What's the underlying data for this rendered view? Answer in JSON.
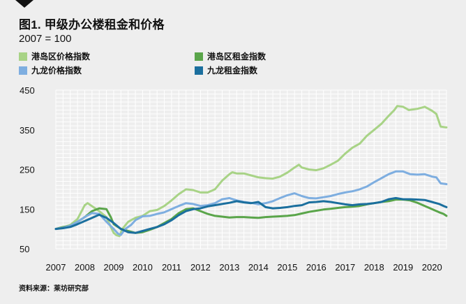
{
  "title": "图1. 甲级办公楼租金和价格",
  "subtitle": "2007 = 100",
  "source": "资料来源：莱坊研究部",
  "chart_data": {
    "type": "line",
    "title": "图1. 甲级办公楼租金和价格",
    "subtitle": "2007 = 100",
    "xlabel": "",
    "ylabel": "",
    "xlim": [
      2007,
      2020.5
    ],
    "ylim": [
      50,
      450
    ],
    "y_ticks": [
      50,
      150,
      250,
      350,
      450
    ],
    "x_ticks": [
      2007,
      2008,
      2009,
      2010,
      2011,
      2012,
      2013,
      2014,
      2015,
      2016,
      2017,
      2018,
      2019,
      2020
    ],
    "grid": true,
    "legend_position": "top-left",
    "series": [
      {
        "name": "港岛区价格指数",
        "color": "#a8d386",
        "points": [
          [
            2007,
            100
          ],
          [
            2007.25,
            104
          ],
          [
            2007.5,
            110
          ],
          [
            2007.75,
            125
          ],
          [
            2008,
            160
          ],
          [
            2008.1,
            165
          ],
          [
            2008.3,
            155
          ],
          [
            2008.5,
            145
          ],
          [
            2008.75,
            130
          ],
          [
            2008.9,
            105
          ],
          [
            2009,
            90
          ],
          [
            2009.1,
            84
          ],
          [
            2009.2,
            82
          ],
          [
            2009.3,
            100
          ],
          [
            2009.5,
            118
          ],
          [
            2009.75,
            128
          ],
          [
            2010,
            133
          ],
          [
            2010.25,
            145
          ],
          [
            2010.5,
            148
          ],
          [
            2010.75,
            158
          ],
          [
            2011,
            172
          ],
          [
            2011.25,
            188
          ],
          [
            2011.5,
            200
          ],
          [
            2011.75,
            198
          ],
          [
            2012,
            192
          ],
          [
            2012.25,
            192
          ],
          [
            2012.5,
            200
          ],
          [
            2012.75,
            222
          ],
          [
            2013,
            238
          ],
          [
            2013.1,
            243
          ],
          [
            2013.25,
            240
          ],
          [
            2013.5,
            240
          ],
          [
            2013.75,
            235
          ],
          [
            2014,
            230
          ],
          [
            2014.25,
            228
          ],
          [
            2014.5,
            227
          ],
          [
            2014.75,
            232
          ],
          [
            2015,
            242
          ],
          [
            2015.25,
            255
          ],
          [
            2015.4,
            262
          ],
          [
            2015.5,
            255
          ],
          [
            2015.75,
            250
          ],
          [
            2016,
            248
          ],
          [
            2016.25,
            253
          ],
          [
            2016.5,
            262
          ],
          [
            2016.75,
            272
          ],
          [
            2017,
            290
          ],
          [
            2017.25,
            305
          ],
          [
            2017.5,
            315
          ],
          [
            2017.75,
            335
          ],
          [
            2018,
            350
          ],
          [
            2018.25,
            365
          ],
          [
            2018.5,
            385
          ],
          [
            2018.7,
            400
          ],
          [
            2018.8,
            410
          ],
          [
            2019,
            408
          ],
          [
            2019.2,
            400
          ],
          [
            2019.5,
            403
          ],
          [
            2019.75,
            408
          ],
          [
            2020,
            398
          ],
          [
            2020.15,
            390
          ],
          [
            2020.3,
            358
          ],
          [
            2020.5,
            356
          ]
        ]
      },
      {
        "name": "港岛区租金指数",
        "color": "#5aa54a",
        "points": [
          [
            2007,
            100
          ],
          [
            2007.25,
            105
          ],
          [
            2007.5,
            108
          ],
          [
            2007.75,
            118
          ],
          [
            2008,
            130
          ],
          [
            2008.25,
            145
          ],
          [
            2008.5,
            152
          ],
          [
            2008.75,
            150
          ],
          [
            2008.9,
            130
          ],
          [
            2009,
            112
          ],
          [
            2009.25,
            100
          ],
          [
            2009.5,
            95
          ],
          [
            2009.75,
            90
          ],
          [
            2010,
            92
          ],
          [
            2010.25,
            98
          ],
          [
            2010.5,
            105
          ],
          [
            2010.75,
            115
          ],
          [
            2011,
            125
          ],
          [
            2011.25,
            140
          ],
          [
            2011.5,
            150
          ],
          [
            2011.75,
            152
          ],
          [
            2012,
            145
          ],
          [
            2012.25,
            138
          ],
          [
            2012.5,
            133
          ],
          [
            2012.75,
            131
          ],
          [
            2013,
            129
          ],
          [
            2013.25,
            130
          ],
          [
            2013.5,
            130
          ],
          [
            2013.75,
            129
          ],
          [
            2014,
            128
          ],
          [
            2014.25,
            130
          ],
          [
            2014.5,
            131
          ],
          [
            2014.75,
            132
          ],
          [
            2015,
            133
          ],
          [
            2015.25,
            135
          ],
          [
            2015.5,
            139
          ],
          [
            2015.75,
            143
          ],
          [
            2016,
            146
          ],
          [
            2016.25,
            149
          ],
          [
            2016.5,
            151
          ],
          [
            2016.75,
            153
          ],
          [
            2017,
            155
          ],
          [
            2017.25,
            156
          ],
          [
            2017.5,
            158
          ],
          [
            2017.75,
            162
          ],
          [
            2018,
            165
          ],
          [
            2018.25,
            168
          ],
          [
            2018.5,
            170
          ],
          [
            2018.75,
            174
          ],
          [
            2019,
            174
          ],
          [
            2019.25,
            172
          ],
          [
            2019.5,
            166
          ],
          [
            2019.75,
            158
          ],
          [
            2020,
            150
          ],
          [
            2020.25,
            142
          ],
          [
            2020.4,
            138
          ],
          [
            2020.5,
            133
          ]
        ]
      },
      {
        "name": "九龙价格指数",
        "color": "#7eaee0",
        "points": [
          [
            2007,
            100
          ],
          [
            2007.25,
            103
          ],
          [
            2007.5,
            108
          ],
          [
            2007.75,
            118
          ],
          [
            2008,
            130
          ],
          [
            2008.25,
            140
          ],
          [
            2008.5,
            138
          ],
          [
            2008.75,
            118
          ],
          [
            2009,
            100
          ],
          [
            2009.15,
            88
          ],
          [
            2009.25,
            85
          ],
          [
            2009.4,
            100
          ],
          [
            2009.6,
            110
          ],
          [
            2009.75,
            122
          ],
          [
            2010,
            132
          ],
          [
            2010.25,
            133
          ],
          [
            2010.5,
            138
          ],
          [
            2010.75,
            142
          ],
          [
            2011,
            150
          ],
          [
            2011.25,
            158
          ],
          [
            2011.5,
            165
          ],
          [
            2011.75,
            163
          ],
          [
            2012,
            158
          ],
          [
            2012.25,
            160
          ],
          [
            2012.5,
            165
          ],
          [
            2012.75,
            175
          ],
          [
            2013,
            178
          ],
          [
            2013.25,
            172
          ],
          [
            2013.5,
            168
          ],
          [
            2013.75,
            166
          ],
          [
            2014,
            162
          ],
          [
            2014.25,
            165
          ],
          [
            2014.5,
            170
          ],
          [
            2014.75,
            178
          ],
          [
            2015,
            185
          ],
          [
            2015.25,
            190
          ],
          [
            2015.5,
            183
          ],
          [
            2015.75,
            178
          ],
          [
            2016,
            177
          ],
          [
            2016.25,
            180
          ],
          [
            2016.5,
            183
          ],
          [
            2016.75,
            188
          ],
          [
            2017,
            192
          ],
          [
            2017.25,
            195
          ],
          [
            2017.5,
            200
          ],
          [
            2017.75,
            207
          ],
          [
            2018,
            218
          ],
          [
            2018.25,
            228
          ],
          [
            2018.5,
            238
          ],
          [
            2018.75,
            245
          ],
          [
            2019,
            245
          ],
          [
            2019.25,
            238
          ],
          [
            2019.5,
            237
          ],
          [
            2019.75,
            238
          ],
          [
            2020,
            232
          ],
          [
            2020.15,
            230
          ],
          [
            2020.3,
            215
          ],
          [
            2020.5,
            213
          ]
        ]
      },
      {
        "name": "九龙租金指数",
        "color": "#1b6f9e",
        "points": [
          [
            2007,
            100
          ],
          [
            2007.25,
            102
          ],
          [
            2007.5,
            105
          ],
          [
            2007.75,
            112
          ],
          [
            2008,
            120
          ],
          [
            2008.25,
            128
          ],
          [
            2008.5,
            136
          ],
          [
            2008.75,
            128
          ],
          [
            2009,
            115
          ],
          [
            2009.25,
            100
          ],
          [
            2009.5,
            92
          ],
          [
            2009.75,
            90
          ],
          [
            2010,
            95
          ],
          [
            2010.25,
            100
          ],
          [
            2010.5,
            105
          ],
          [
            2010.75,
            112
          ],
          [
            2011,
            122
          ],
          [
            2011.25,
            135
          ],
          [
            2011.5,
            145
          ],
          [
            2011.75,
            150
          ],
          [
            2012,
            152
          ],
          [
            2012.25,
            157
          ],
          [
            2012.5,
            160
          ],
          [
            2012.75,
            163
          ],
          [
            2013,
            166
          ],
          [
            2013.25,
            170
          ],
          [
            2013.5,
            167
          ],
          [
            2013.75,
            165
          ],
          [
            2014,
            168
          ],
          [
            2014.25,
            155
          ],
          [
            2014.5,
            152
          ],
          [
            2014.75,
            153
          ],
          [
            2015,
            155
          ],
          [
            2015.25,
            158
          ],
          [
            2015.5,
            160
          ],
          [
            2015.75,
            167
          ],
          [
            2016,
            168
          ],
          [
            2016.25,
            170
          ],
          [
            2016.5,
            168
          ],
          [
            2016.75,
            165
          ],
          [
            2017,
            162
          ],
          [
            2017.25,
            160
          ],
          [
            2017.5,
            162
          ],
          [
            2017.75,
            163
          ],
          [
            2018,
            165
          ],
          [
            2018.25,
            168
          ],
          [
            2018.5,
            175
          ],
          [
            2018.75,
            178
          ],
          [
            2019,
            175
          ],
          [
            2019.25,
            175
          ],
          [
            2019.5,
            174
          ],
          [
            2019.75,
            173
          ],
          [
            2020,
            168
          ],
          [
            2020.25,
            163
          ],
          [
            2020.4,
            158
          ],
          [
            2020.5,
            155
          ]
        ]
      }
    ]
  },
  "legend": [
    {
      "label": "港岛区价格指数",
      "color": "#a8d386"
    },
    {
      "label": "港岛区租金指数",
      "color": "#5aa54a"
    },
    {
      "label": "九龙价格指数",
      "color": "#7eaee0"
    },
    {
      "label": "九龙租金指数",
      "color": "#1b6f9e"
    }
  ]
}
